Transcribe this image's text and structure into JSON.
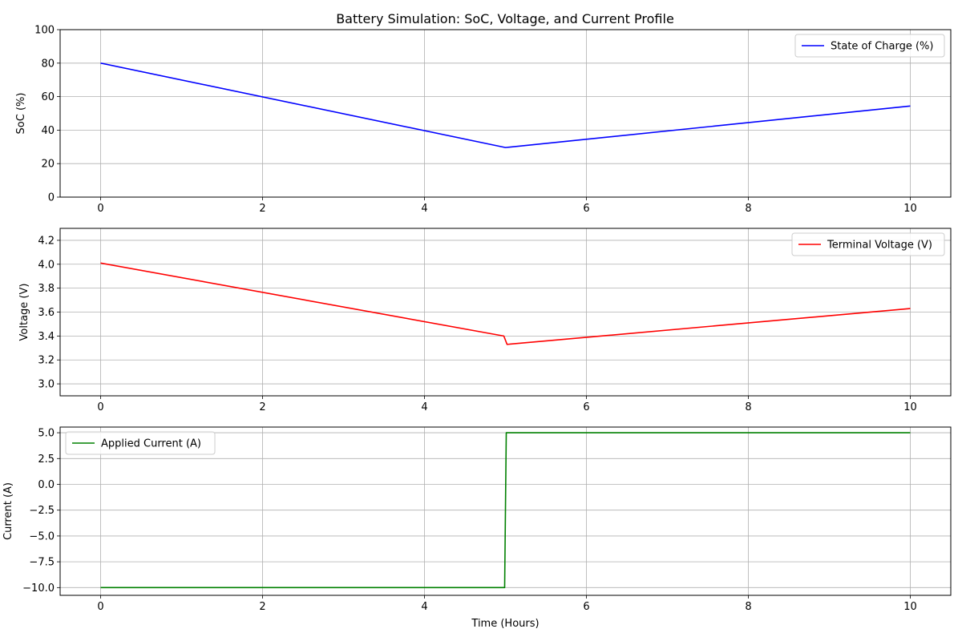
{
  "chart_data": [
    {
      "type": "line",
      "title": "Battery Simulation: SoC, Voltage, and Current Profile",
      "xlabel": "",
      "ylabel": "SoC (%)",
      "xlim": [
        -0.5,
        10.5
      ],
      "ylim": [
        0,
        100
      ],
      "grid": true,
      "legend_position": "top-right",
      "x_ticks": [
        0,
        2,
        4,
        6,
        8,
        10
      ],
      "x_tick_labels": [
        "0",
        "2",
        "4",
        "6",
        "8",
        "10"
      ],
      "y_ticks": [
        0,
        20,
        40,
        60,
        80,
        100
      ],
      "y_tick_labels": [
        "0",
        "20",
        "40",
        "60",
        "80",
        "100"
      ],
      "series": [
        {
          "name": "State of Charge (%)",
          "color": "#0000ff",
          "points": [
            [
              0,
              80.0
            ],
            [
              5,
              29.6
            ],
            [
              10,
              54.4
            ]
          ]
        }
      ]
    },
    {
      "type": "line",
      "title": "",
      "xlabel": "",
      "ylabel": "Voltage (V)",
      "xlim": [
        -0.5,
        10.5
      ],
      "ylim": [
        2.9,
        4.3
      ],
      "grid": true,
      "legend_position": "top-right",
      "x_ticks": [
        0,
        2,
        4,
        6,
        8,
        10
      ],
      "x_tick_labels": [
        "0",
        "2",
        "4",
        "6",
        "8",
        "10"
      ],
      "y_ticks": [
        3.0,
        3.2,
        3.4,
        3.6,
        3.8,
        4.0,
        4.2
      ],
      "y_tick_labels": [
        "3.0",
        "3.2",
        "3.4",
        "3.6",
        "3.8",
        "4.0",
        "4.2"
      ],
      "series": [
        {
          "name": "Terminal Voltage (V)",
          "color": "#ff0000",
          "points": [
            [
              0,
              4.01
            ],
            [
              4.98,
              3.4
            ],
            [
              5.02,
              3.33
            ],
            [
              10,
              3.63
            ]
          ]
        }
      ]
    },
    {
      "type": "line",
      "title": "",
      "xlabel": "Time (Hours)",
      "ylabel": "Current (A)",
      "xlim": [
        -0.5,
        10.5
      ],
      "ylim": [
        -10.75,
        5.55
      ],
      "grid": true,
      "legend_position": "top-left",
      "x_ticks": [
        0,
        2,
        4,
        6,
        8,
        10
      ],
      "x_tick_labels": [
        "0",
        "2",
        "4",
        "6",
        "8",
        "10"
      ],
      "y_ticks": [
        -10.0,
        -7.5,
        -5.0,
        -2.5,
        0.0,
        2.5,
        5.0
      ],
      "y_tick_labels": [
        "−10.0",
        "−7.5",
        "−5.0",
        "−2.5",
        "0.0",
        "2.5",
        "5.0"
      ],
      "series": [
        {
          "name": "Applied Current (A)",
          "color": "#008000",
          "points": [
            [
              0,
              -10
            ],
            [
              4.99,
              -10
            ],
            [
              5.01,
              5
            ],
            [
              10,
              5
            ]
          ]
        }
      ]
    }
  ]
}
